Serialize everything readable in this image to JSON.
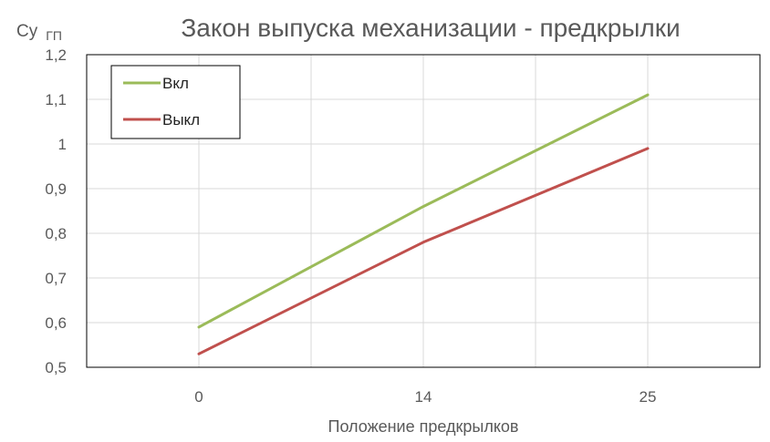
{
  "colors": {
    "series_on": "#9bbb59",
    "series_off": "#c0504d",
    "grid": "#d9d9d9",
    "frame": "#000000",
    "text": "#595959"
  },
  "chart_data": {
    "type": "line",
    "title": "Закон выпуска механизации - предкрылки",
    "ylabel_main": "Cy",
    "ylabel_sub": "ГП",
    "xlabel": "Положение предкрылков",
    "categories": [
      "0",
      "14",
      "25"
    ],
    "ylim": [
      0.5,
      1.2
    ],
    "yticks": [
      "0,5",
      "0,6",
      "0,7",
      "0,8",
      "0,9",
      "1",
      "1,1",
      "1,2"
    ],
    "grid": true,
    "legend_position": "top-left",
    "series": [
      {
        "name": "Вкл",
        "values": [
          0.59,
          0.86,
          1.11
        ]
      },
      {
        "name": "Выкл",
        "values": [
          0.53,
          0.78,
          0.99
        ]
      }
    ]
  }
}
